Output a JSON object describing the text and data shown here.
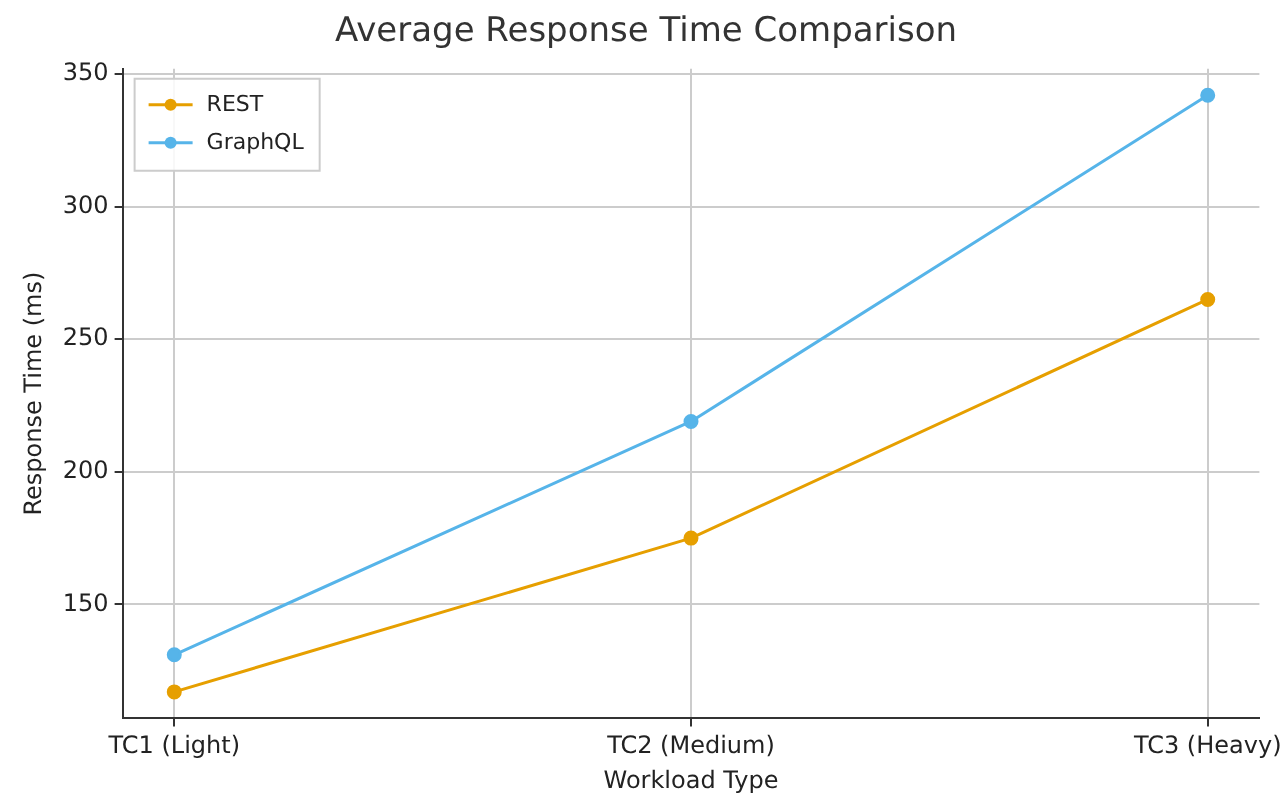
{
  "chart_data": {
    "type": "line",
    "title": "Average Response Time Comparison",
    "xlabel": "Workload Type",
    "ylabel": "Response Time (ms)",
    "categories": [
      "TC1 (Light)",
      "TC2 (Medium)",
      "TC3 (Heavy)"
    ],
    "series": [
      {
        "name": "REST",
        "color": "#e69f00",
        "values": [
          117,
          175,
          265
        ]
      },
      {
        "name": "GraphQL",
        "color": "#56b4e9",
        "values": [
          131,
          219,
          342
        ]
      }
    ],
    "ylim": [
      107,
      352
    ],
    "yticks": [
      150,
      200,
      250,
      300,
      350
    ],
    "grid": true,
    "legend": "top left",
    "marker": "circle",
    "line_style": "solid"
  }
}
